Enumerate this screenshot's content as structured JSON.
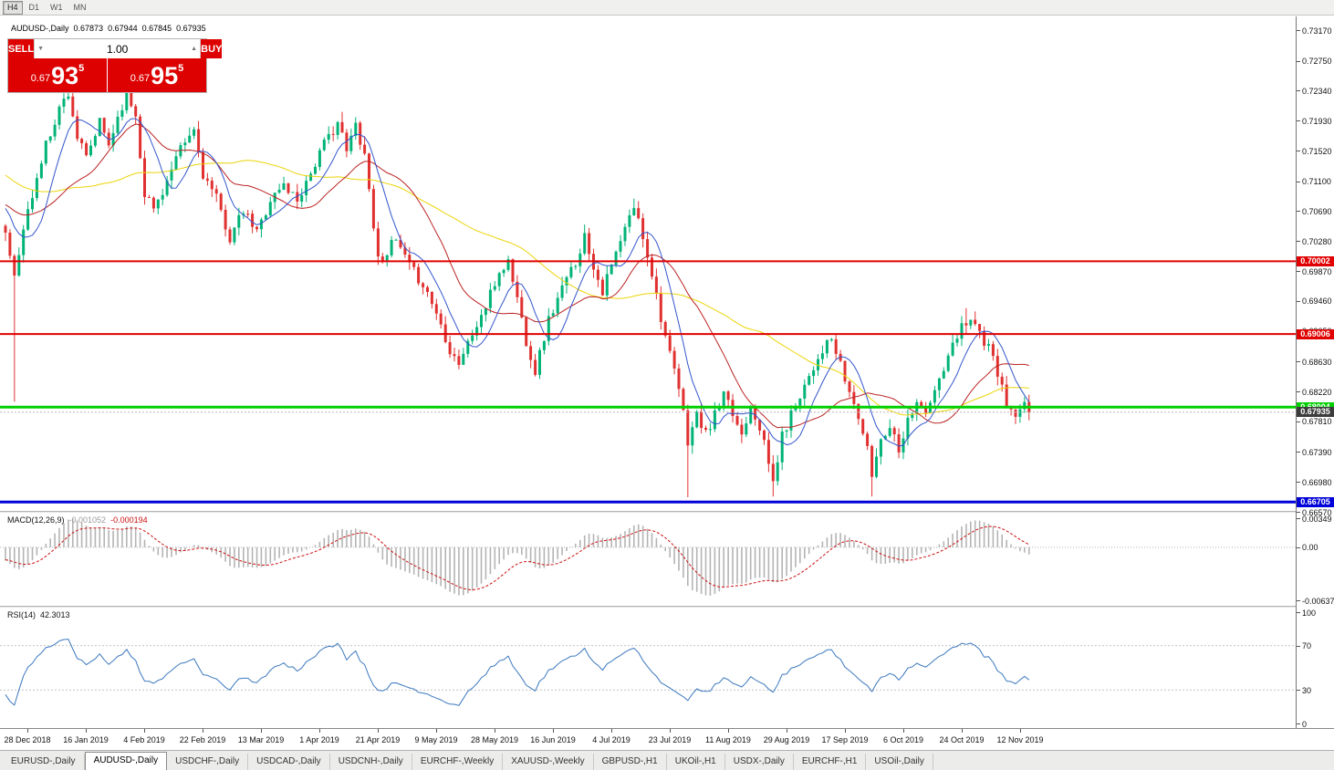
{
  "toolbar": {
    "timeframes": [
      {
        "label": "H4",
        "pressed": true
      },
      {
        "label": "D1",
        "pressed": false
      },
      {
        "label": "W1",
        "pressed": false
      },
      {
        "label": "MN",
        "pressed": false
      }
    ]
  },
  "header": {
    "symbol": "AUDUSD-,Daily",
    "open": "0.67873",
    "high": "0.67944",
    "low": "0.67845",
    "close": "0.67935"
  },
  "trade_panel": {
    "sell_label": "SELL",
    "buy_label": "BUY",
    "volume": "1.00",
    "volume_down_icon": "▼",
    "volume_up_icon": "▲",
    "sell_price": {
      "prefix": "0.67",
      "big": "93",
      "sup": "5"
    },
    "buy_price": {
      "prefix": "0.67",
      "big": "95",
      "sup": "5"
    }
  },
  "price_axis": {
    "top": 0.7317,
    "bottom": 0.6657,
    "ticks": [
      "0.73170",
      "0.72750",
      "0.72340",
      "0.71930",
      "0.71520",
      "0.71100",
      "0.70690",
      "0.70280",
      "0.69870",
      "0.69460",
      "0.69050",
      "0.68630",
      "0.68220",
      "0.67810",
      "0.67390",
      "0.66980",
      "0.66570"
    ]
  },
  "levels": [
    {
      "label": "0.70002",
      "price": 0.70002,
      "color": "#e00000",
      "width": 2
    },
    {
      "label": "0.69006",
      "price": 0.69006,
      "color": "#e00000",
      "width": 2
    },
    {
      "label": "0.68004",
      "price": 0.68004,
      "color": "#00cf00",
      "width": 3
    },
    {
      "label": "0.66705",
      "price": 0.66705,
      "color": "#0000d8",
      "width": 3
    }
  ],
  "bid": {
    "label": "0.67935",
    "price": 0.67935
  },
  "time_axis": {
    "labels": [
      "28 Dec 2018",
      "16 Jan 2019",
      "4 Feb 2019",
      "22 Feb 2019",
      "13 Mar 2019",
      "1 Apr 2019",
      "21 Apr 2019",
      "9 May 2019",
      "28 May 2019",
      "16 Jun 2019",
      "4 Jul 2019",
      "23 Jul 2019",
      "11 Aug 2019",
      "29 Aug 2019",
      "17 Sep 2019",
      "6 Oct 2019",
      "24 Oct 2019",
      "12 Nov 2019"
    ]
  },
  "macd": {
    "title": "MACD(12,26,9)",
    "value_main": "-0.001052",
    "value_signal": "-0.000194",
    "axis": {
      "max_label": "0.00349",
      "zero_label": "0.00",
      "min_label": "-0.00637",
      "max": 0.00349,
      "min": -0.00637
    }
  },
  "rsi": {
    "title": "RSI(14)",
    "value": "42.3013",
    "axis": [
      "100",
      "70",
      "30",
      "0"
    ],
    "levels": [
      70,
      30
    ]
  },
  "tabs": [
    {
      "label": "EURUSD-,Daily",
      "active": false
    },
    {
      "label": "AUDUSD-,Daily",
      "active": true
    },
    {
      "label": "USDCHF-,Daily",
      "active": false
    },
    {
      "label": "USDCAD-,Daily",
      "active": false
    },
    {
      "label": "USDCNH-,Daily",
      "active": false
    },
    {
      "label": "EURCHF-,Weekly",
      "active": false
    },
    {
      "label": "XAUUSD-,Weekly",
      "active": false
    },
    {
      "label": "GBPUSD-,H1",
      "active": false
    },
    {
      "label": "UKOil-,H1",
      "active": false
    },
    {
      "label": "USDX-,Daily",
      "active": false
    },
    {
      "label": "EURCHF-,H1",
      "active": false
    },
    {
      "label": "USOil-,Daily",
      "active": false
    }
  ],
  "colors": {
    "bull": "#00b377",
    "bear": "#e03130",
    "ma_fast": "#3355cc",
    "ma_mid": "#bb2222",
    "ma_slow": "#ecd407",
    "macd_hist": "#b4b4b4",
    "macd_signal": "#cc1111",
    "rsi_line": "#3b78be",
    "bid_label_bg": "#3c3c3c",
    "panel_red": "#dd0101"
  },
  "chart_data": {
    "type": "candlestick",
    "symbol": "AUDUSD",
    "timeframe": "Daily",
    "visible_candles": 229,
    "preroll": 60,
    "seed": 11,
    "ma_periods": [
      8,
      21,
      50
    ],
    "anchors": [
      [
        -60,
        0.7265
      ],
      [
        -45,
        0.7195
      ],
      [
        -30,
        0.712
      ],
      [
        -15,
        0.707
      ],
      [
        -6,
        0.71
      ],
      [
        -1,
        0.705
      ],
      [
        0,
        0.704
      ],
      [
        1,
        0.701
      ],
      [
        2,
        0.6988
      ],
      [
        3,
        0.7005
      ],
      [
        4,
        0.7045
      ],
      [
        6,
        0.709
      ],
      [
        9,
        0.716
      ],
      [
        12,
        0.721
      ],
      [
        14,
        0.7232
      ],
      [
        16,
        0.717
      ],
      [
        18,
        0.714
      ],
      [
        21,
        0.719
      ],
      [
        23,
        0.716
      ],
      [
        25,
        0.7198
      ],
      [
        27,
        0.7232
      ],
      [
        29,
        0.72
      ],
      [
        31,
        0.7095
      ],
      [
        33,
        0.7072
      ],
      [
        36,
        0.711
      ],
      [
        39,
        0.7152
      ],
      [
        42,
        0.718
      ],
      [
        44,
        0.712
      ],
      [
        47,
        0.7085
      ],
      [
        50,
        0.7032
      ],
      [
        53,
        0.7068
      ],
      [
        56,
        0.704
      ],
      [
        59,
        0.7085
      ],
      [
        62,
        0.7105
      ],
      [
        65,
        0.7085
      ],
      [
        68,
        0.7122
      ],
      [
        71,
        0.716
      ],
      [
        74,
        0.7192
      ],
      [
        76,
        0.715
      ],
      [
        78,
        0.7188
      ],
      [
        80,
        0.7148
      ],
      [
        83,
        0.7002
      ],
      [
        85,
        0.7015
      ],
      [
        87,
        0.7028
      ],
      [
        90,
        0.6992
      ],
      [
        93,
        0.697
      ],
      [
        96,
        0.693
      ],
      [
        99,
        0.688
      ],
      [
        101,
        0.6862
      ],
      [
        104,
        0.69
      ],
      [
        107,
        0.6938
      ],
      [
        110,
        0.6985
      ],
      [
        112,
        0.7
      ],
      [
        114,
        0.695
      ],
      [
        116,
        0.6892
      ],
      [
        118,
        0.685
      ],
      [
        121,
        0.692
      ],
      [
        124,
        0.6962
      ],
      [
        127,
        0.7
      ],
      [
        129,
        0.7035
      ],
      [
        131,
        0.6995
      ],
      [
        133,
        0.696
      ],
      [
        136,
        0.701
      ],
      [
        139,
        0.706
      ],
      [
        140,
        0.7075
      ],
      [
        142,
        0.7035
      ],
      [
        144,
        0.6985
      ],
      [
        146,
        0.6925
      ],
      [
        148,
        0.687
      ],
      [
        150,
        0.6825
      ],
      [
        152,
        0.6755
      ],
      [
        154,
        0.679
      ],
      [
        156,
        0.6762
      ],
      [
        158,
        0.679
      ],
      [
        160,
        0.6815
      ],
      [
        162,
        0.679
      ],
      [
        164,
        0.6764
      ],
      [
        166,
        0.6805
      ],
      [
        168,
        0.6775
      ],
      [
        170,
        0.6722
      ],
      [
        171,
        0.6698
      ],
      [
        173,
        0.676
      ],
      [
        176,
        0.6806
      ],
      [
        179,
        0.6845
      ],
      [
        182,
        0.688
      ],
      [
        184,
        0.6892
      ],
      [
        186,
        0.6856
      ],
      [
        188,
        0.682
      ],
      [
        190,
        0.6788
      ],
      [
        192,
        0.674
      ],
      [
        193,
        0.6708
      ],
      [
        195,
        0.6758
      ],
      [
        197,
        0.6776
      ],
      [
        199,
        0.6746
      ],
      [
        201,
        0.6782
      ],
      [
        203,
        0.6812
      ],
      [
        205,
        0.6788
      ],
      [
        207,
        0.6822
      ],
      [
        209,
        0.6852
      ],
      [
        211,
        0.6882
      ],
      [
        213,
        0.6912
      ],
      [
        215,
        0.6926
      ],
      [
        217,
        0.6902
      ],
      [
        219,
        0.688
      ],
      [
        221,
        0.6848
      ],
      [
        223,
        0.6802
      ],
      [
        225,
        0.6786
      ],
      [
        227,
        0.68
      ],
      [
        228,
        0.67935
      ]
    ],
    "wick_overrides": [
      {
        "i": 2,
        "low": 0.6808
      },
      {
        "i": 14,
        "high": 0.724
      },
      {
        "i": 27,
        "high": 0.7242
      },
      {
        "i": 75,
        "high": 0.7205
      },
      {
        "i": 140,
        "high": 0.7086
      },
      {
        "i": 152,
        "low": 0.6677
      },
      {
        "i": 171,
        "low": 0.6678
      },
      {
        "i": 193,
        "low": 0.6678
      },
      {
        "i": 214,
        "high": 0.6936
      }
    ]
  }
}
